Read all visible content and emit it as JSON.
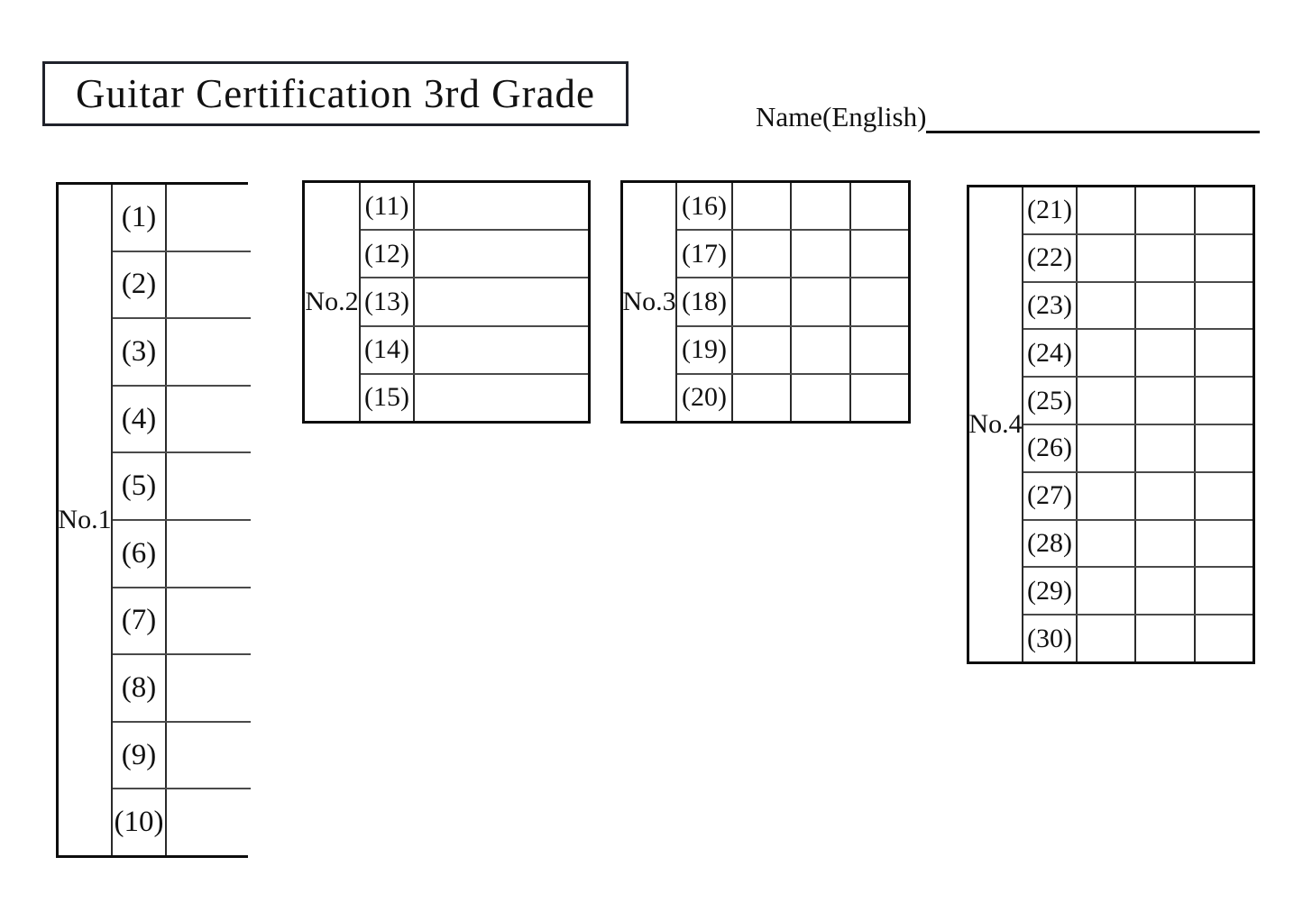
{
  "title": "Guitar Certification 3rd Grade",
  "name": {
    "label": "Name(English)",
    "value": ""
  },
  "colors": {
    "ink": "#111111",
    "paper": "#ffffff",
    "border": "#0d0d0d"
  },
  "tables": [
    {
      "label": "No.1",
      "answer_columns": 1,
      "items": [
        "(1)",
        "(2)",
        "(3)",
        "(4)",
        "(5)",
        "(6)",
        "(7)",
        "(8)",
        "(9)",
        "(10)"
      ]
    },
    {
      "label": "No.2",
      "answer_columns": 1,
      "items": [
        "(11)",
        "(12)",
        "(13)",
        "(14)",
        "(15)"
      ]
    },
    {
      "label": "No.3",
      "answer_columns": 3,
      "items": [
        "(16)",
        "(17)",
        "(18)",
        "(19)",
        "(20)"
      ]
    },
    {
      "label": "No.4",
      "answer_columns": 3,
      "items": [
        "(21)",
        "(22)",
        "(23)",
        "(24)",
        "(25)",
        "(26)",
        "(27)",
        "(28)",
        "(29)",
        "(30)"
      ]
    }
  ]
}
